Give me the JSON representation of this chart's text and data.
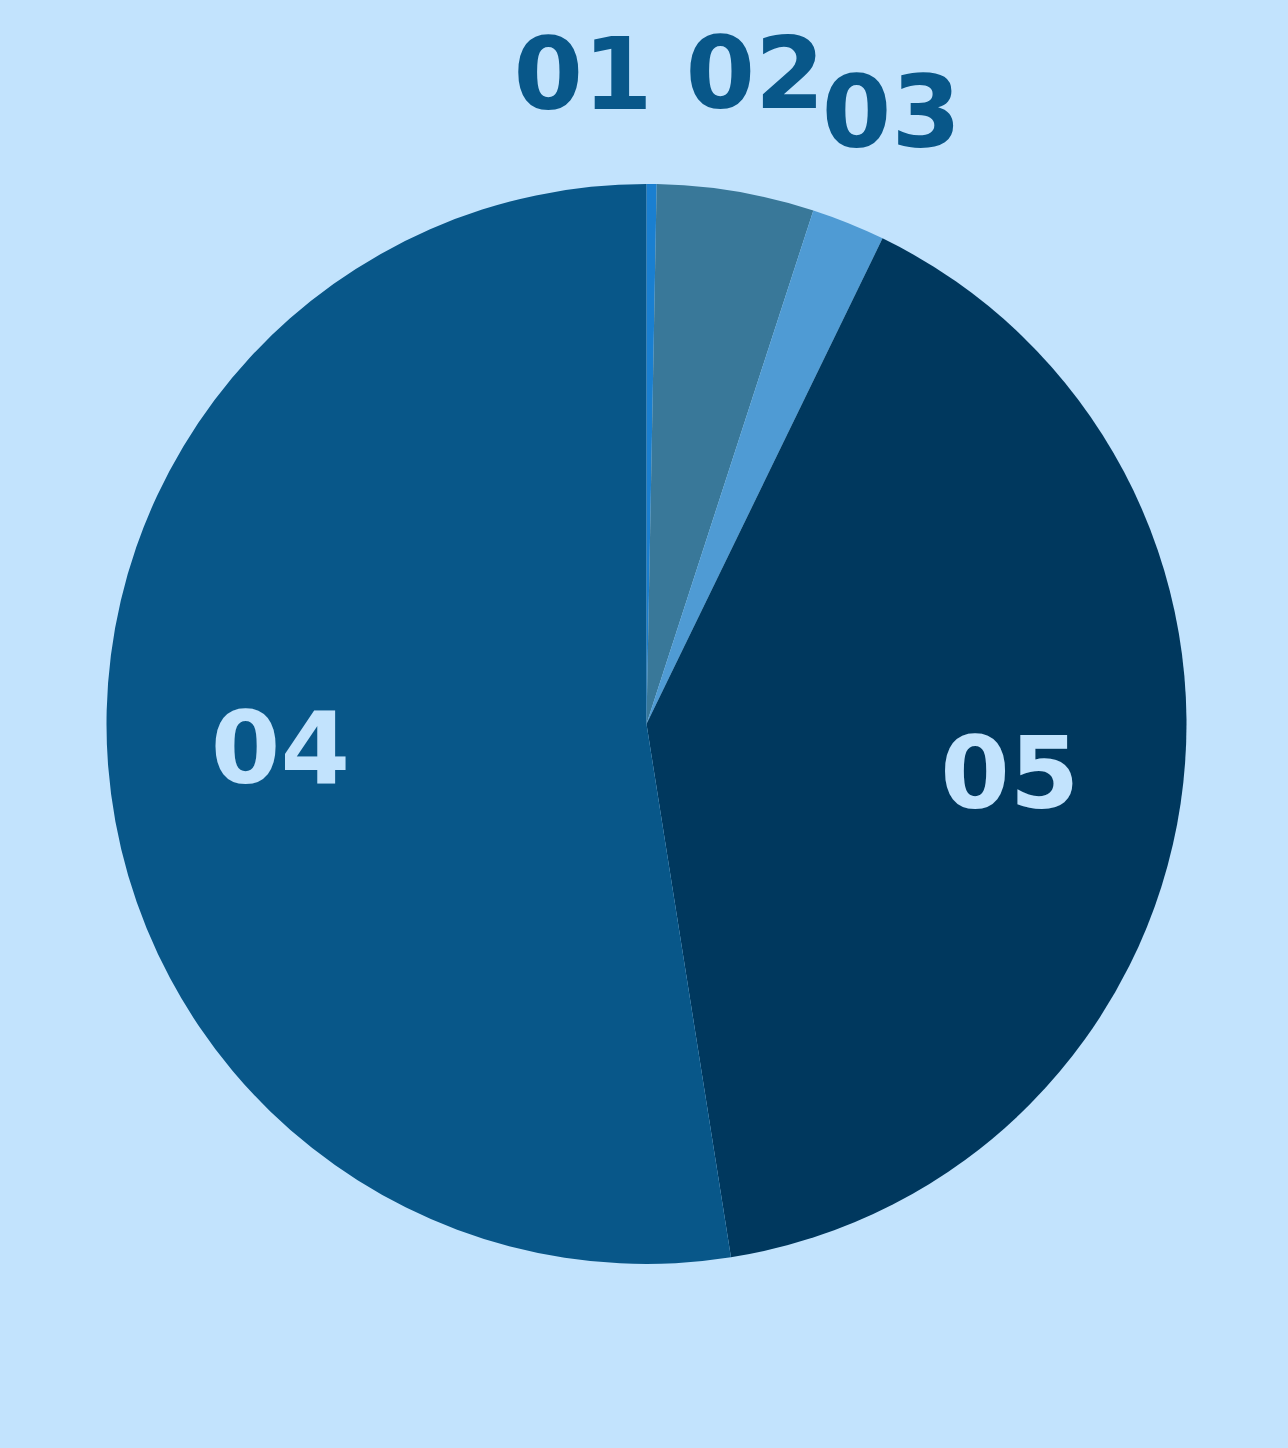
{
  "chart_data": {
    "type": "pie",
    "categories": [
      "01",
      "02",
      "03",
      "05",
      "04"
    ],
    "values": [
      0.3,
      4.7,
      2.2,
      40.3,
      52.5
    ],
    "colors": [
      "#1a7fd0",
      "#397899",
      "#4f9bd4",
      "#00385e",
      "#085789"
    ]
  }
}
